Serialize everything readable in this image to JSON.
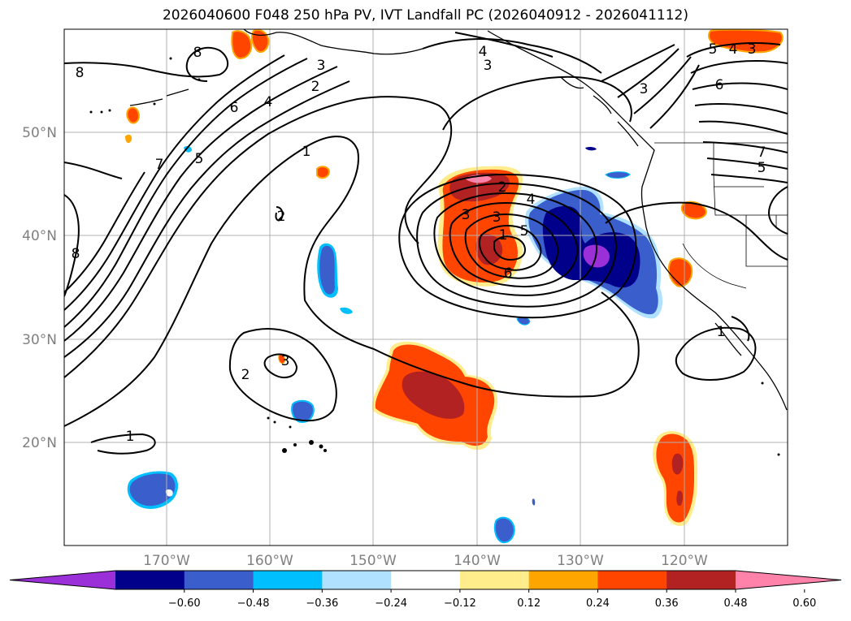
{
  "title": "2026040600 F048 250 hPa PV, IVT Landfall PC (2026040912 - 2026041112)",
  "lon_labels": [
    "170°W",
    "160°W",
    "150°W",
    "140°W",
    "130°W",
    "120°W"
  ],
  "lat_labels": [
    "50°N",
    "40°N",
    "30°N",
    "20°N"
  ],
  "colorbar": {
    "tick_labels": [
      "−0.60",
      "−0.48",
      "−0.36",
      "−0.24",
      "−0.12",
      "0.12",
      "0.24",
      "0.36",
      "0.48",
      "0.60"
    ],
    "colors": [
      "#9b30d9",
      "#00008b",
      "#3a5fcd",
      "#00bfff",
      "#b0e2ff",
      "#ffffff",
      "#ffec8b",
      "#ffa500",
      "#ff4500",
      "#b22222",
      "#ff82ab"
    ]
  },
  "contour_labels": [
    "8",
    "8",
    "8",
    "7",
    "6",
    "5",
    "4",
    "3",
    "2",
    "1",
    "2",
    "2",
    "3",
    "1",
    "3",
    "2",
    "3",
    "4",
    "5",
    "6",
    "1",
    "4",
    "3",
    "3",
    "6",
    "5",
    "4",
    "3",
    "5",
    "7",
    "1"
  ],
  "map_meta": {
    "projection": "PlateCarree",
    "lon_range": [
      -180,
      -110
    ],
    "lat_range": [
      10,
      60
    ],
    "gridlines": true,
    "colorbar_extend": "both"
  }
}
